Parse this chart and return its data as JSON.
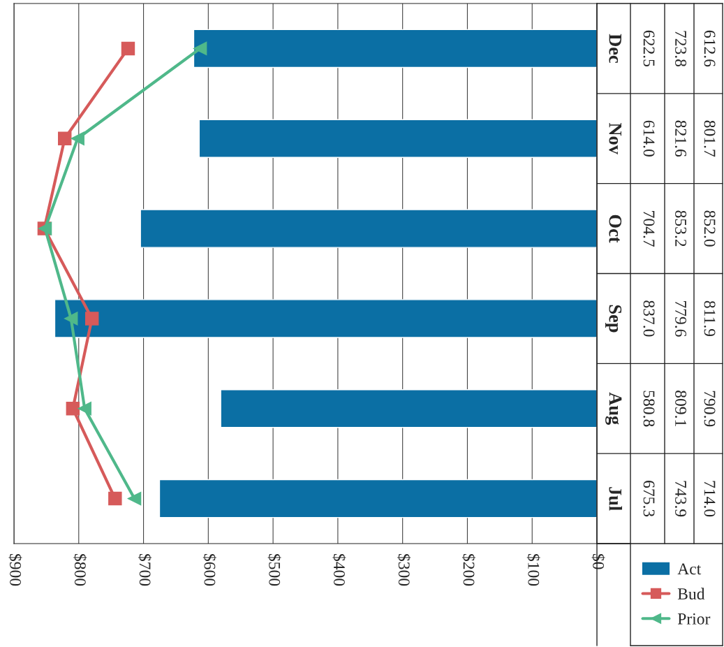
{
  "chart_data": {
    "type": "bar",
    "orientation": "horizontal",
    "categories": [
      "Dec",
      "Nov",
      "Oct",
      "Sep",
      "Aug",
      "Jul"
    ],
    "series": [
      {
        "name": "Act",
        "color": "#0b6fa4",
        "values": [
          622.5,
          614.0,
          704.7,
          837.0,
          580.8,
          675.3
        ],
        "value_labels": [
          "622.5",
          "614.0",
          "704.7",
          "837.0",
          "580.8",
          "675.3"
        ]
      },
      {
        "name": "Bud",
        "type": "line",
        "color": "#d65a5a",
        "marker": "square",
        "values": [
          723.8,
          821.6,
          853.2,
          779.6,
          809.1,
          743.9
        ],
        "value_labels": [
          "723.8",
          "821.6",
          "853.2",
          "779.6",
          "809.1",
          "743.9"
        ]
      },
      {
        "name": "Prior",
        "type": "line",
        "color": "#4fb88a",
        "marker": "triangle",
        "values": [
          612.6,
          801.7,
          852.0,
          811.9,
          790.9,
          714.0
        ],
        "value_labels": [
          "612.6",
          "801.7",
          "852.0",
          "811.9",
          "790.9",
          "714.0"
        ]
      }
    ],
    "xlim": [
      900,
      0
    ],
    "xticks": [
      {
        "value": 900,
        "label": "$900"
      },
      {
        "value": 800,
        "label": "$800"
      },
      {
        "value": 700,
        "label": "$700"
      },
      {
        "value": 600,
        "label": "$600"
      },
      {
        "value": 500,
        "label": "$500"
      },
      {
        "value": 400,
        "label": "$400"
      },
      {
        "value": 300,
        "label": "$300"
      },
      {
        "value": 200,
        "label": "$200"
      },
      {
        "value": 100,
        "label": "$100"
      },
      {
        "value": 0,
        "label": "$0"
      }
    ],
    "grid": "x",
    "legend": "right"
  }
}
